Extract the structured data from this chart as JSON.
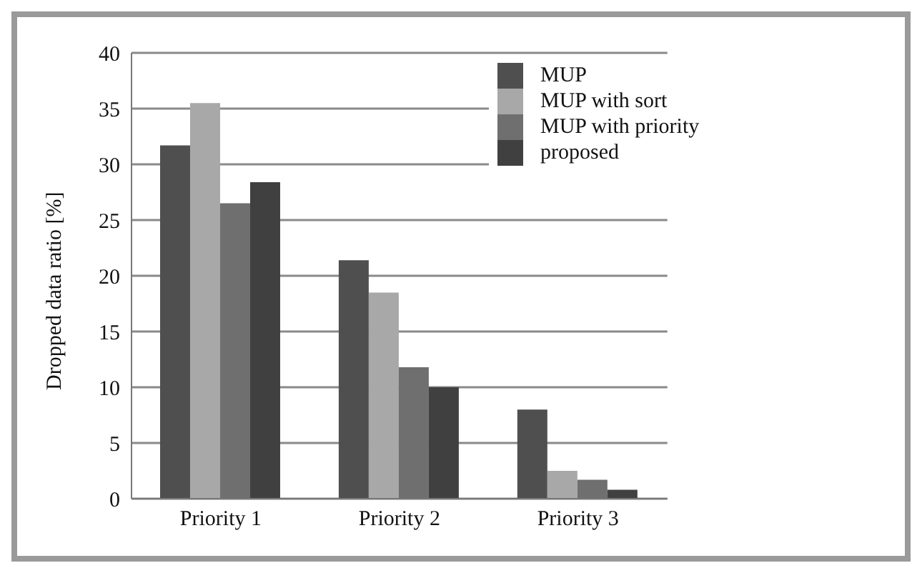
{
  "chart_data": {
    "type": "bar",
    "ylabel": "Dropped data ratio [%]",
    "categories": [
      "Priority 1",
      "Priority 2",
      "Priority 3"
    ],
    "series": [
      {
        "name": "MUP",
        "color": "#4f4f4f",
        "values": [
          31.7,
          21.4,
          8.0
        ]
      },
      {
        "name": "MUP with sort",
        "color": "#a8a8a8",
        "values": [
          35.5,
          18.5,
          2.5
        ]
      },
      {
        "name": "MUP with priority",
        "color": "#6f6f6f",
        "values": [
          26.5,
          11.8,
          1.7
        ]
      },
      {
        "name": "proposed",
        "color": "#404040",
        "values": [
          28.4,
          10.0,
          0.8
        ]
      }
    ],
    "ylim": [
      0,
      40
    ],
    "yticks": [
      0,
      5,
      10,
      15,
      20,
      25,
      30,
      35,
      40
    ],
    "grid": "y",
    "legend": "top right"
  }
}
